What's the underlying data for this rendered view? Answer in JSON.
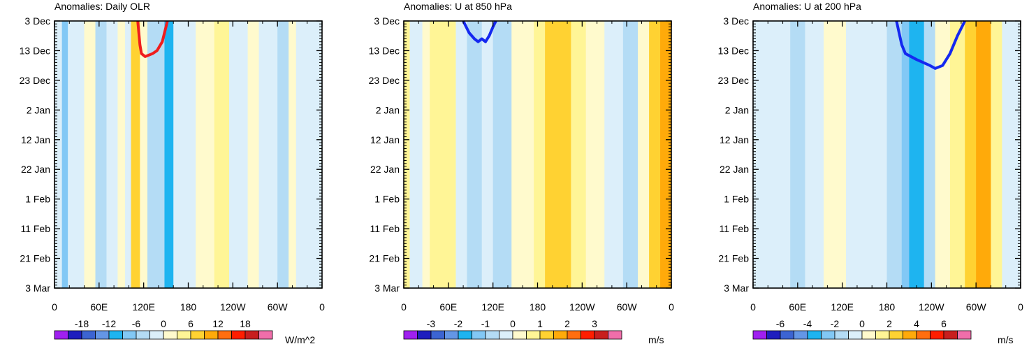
{
  "chart_data": [
    {
      "type": "heatmap",
      "title": "Anomalies: Daily OLR",
      "xlabel": "",
      "ylabel": "",
      "x_ticks": [
        "0",
        "60E",
        "120E",
        "180",
        "120W",
        "60W",
        "0"
      ],
      "y_ticks": [
        "3 Dec",
        "13 Dec",
        "23 Dec",
        "2 Jan",
        "12 Jan",
        "22 Jan",
        "1 Feb",
        "11 Feb",
        "21 Feb",
        "3 Mar"
      ],
      "xlim": [
        0,
        360
      ],
      "ylim": [
        0,
        90
      ],
      "colorbar": {
        "unit": "W/m^2",
        "tick_labels": [
          "-18",
          "-12",
          "-6",
          "0",
          "6",
          "12",
          "18"
        ],
        "levels": [
          -21,
          -18,
          -15,
          -12,
          -9,
          -6,
          -3,
          0,
          3,
          6,
          9,
          12,
          15,
          18,
          21
        ]
      },
      "bands": [
        {
          "x0": 0,
          "x1": 10,
          "level": -1
        },
        {
          "x0": 10,
          "x1": 18,
          "level": -3
        },
        {
          "x0": 18,
          "x1": 40,
          "level": -1
        },
        {
          "x0": 40,
          "x1": 55,
          "level": 1
        },
        {
          "x0": 55,
          "x1": 70,
          "level": -2
        },
        {
          "x0": 70,
          "x1": 85,
          "level": -1
        },
        {
          "x0": 85,
          "x1": 95,
          "level": 1
        },
        {
          "x0": 95,
          "x1": 103,
          "level": -1
        },
        {
          "x0": 103,
          "x1": 115,
          "level": 3
        },
        {
          "x0": 115,
          "x1": 125,
          "level": 1
        },
        {
          "x0": 125,
          "x1": 148,
          "level": -2
        },
        {
          "x0": 148,
          "x1": 160,
          "level": -4
        },
        {
          "x0": 160,
          "x1": 190,
          "level": -1
        },
        {
          "x0": 190,
          "x1": 215,
          "level": 1
        },
        {
          "x0": 215,
          "x1": 235,
          "level": 2
        },
        {
          "x0": 235,
          "x1": 260,
          "level": -1
        },
        {
          "x0": 260,
          "x1": 275,
          "level": 1
        },
        {
          "x0": 275,
          "x1": 300,
          "level": -1
        },
        {
          "x0": 300,
          "x1": 315,
          "level": -2
        },
        {
          "x0": 315,
          "x1": 325,
          "level": 1
        },
        {
          "x0": 325,
          "x1": 360,
          "level": -1
        }
      ],
      "contour_color": "#ef1d1d",
      "contour": [
        [
          112,
          0
        ],
        [
          115,
          8
        ],
        [
          117,
          11
        ],
        [
          122,
          12
        ],
        [
          132,
          11
        ],
        [
          138,
          10
        ],
        [
          145,
          7
        ],
        [
          152,
          0
        ]
      ]
    },
    {
      "type": "heatmap",
      "title": "Anomalies: U at 850 hPa",
      "xlabel": "",
      "ylabel": "",
      "x_ticks": [
        "0",
        "60E",
        "120E",
        "180",
        "120W",
        "60W",
        "0"
      ],
      "y_ticks": [
        "3 Dec",
        "13 Dec",
        "23 Dec",
        "2 Jan",
        "12 Jan",
        "22 Jan",
        "1 Feb",
        "11 Feb",
        "21 Feb",
        "3 Mar"
      ],
      "xlim": [
        0,
        360
      ],
      "ylim": [
        0,
        90
      ],
      "colorbar": {
        "unit": "m/s",
        "tick_labels": [
          "-3",
          "-2",
          "-1",
          "0",
          "1",
          "2",
          "3"
        ],
        "levels": [
          -3.5,
          -3,
          -2.5,
          -2,
          -1.5,
          -1,
          -0.5,
          0,
          0.5,
          1,
          1.5,
          2,
          2.5,
          3,
          3.5
        ]
      },
      "bands": [
        {
          "x0": 0,
          "x1": 8,
          "level": 2
        },
        {
          "x0": 8,
          "x1": 25,
          "level": -1
        },
        {
          "x0": 25,
          "x1": 35,
          "level": 1
        },
        {
          "x0": 35,
          "x1": 70,
          "level": 2
        },
        {
          "x0": 70,
          "x1": 85,
          "level": -1
        },
        {
          "x0": 85,
          "x1": 105,
          "level": -2
        },
        {
          "x0": 105,
          "x1": 120,
          "level": -1
        },
        {
          "x0": 120,
          "x1": 145,
          "level": -2
        },
        {
          "x0": 145,
          "x1": 175,
          "level": 1
        },
        {
          "x0": 175,
          "x1": 190,
          "level": 2
        },
        {
          "x0": 190,
          "x1": 225,
          "level": 3
        },
        {
          "x0": 225,
          "x1": 245,
          "level": 2
        },
        {
          "x0": 245,
          "x1": 270,
          "level": 1
        },
        {
          "x0": 270,
          "x1": 295,
          "level": -1
        },
        {
          "x0": 295,
          "x1": 315,
          "level": -2
        },
        {
          "x0": 315,
          "x1": 330,
          "level": 1
        },
        {
          "x0": 330,
          "x1": 345,
          "level": 3
        },
        {
          "x0": 345,
          "x1": 360,
          "level": 4
        }
      ],
      "contour_color": "#1428f0",
      "contour": [
        [
          80,
          0
        ],
        [
          88,
          4
        ],
        [
          95,
          6
        ],
        [
          100,
          7
        ],
        [
          105,
          6
        ],
        [
          110,
          7
        ],
        [
          115,
          5
        ],
        [
          120,
          2
        ],
        [
          124,
          0
        ]
      ]
    },
    {
      "type": "heatmap",
      "title": "Anomalies: U at 200 hPa",
      "xlabel": "",
      "ylabel": "",
      "x_ticks": [
        "0",
        "60E",
        "120E",
        "180",
        "120W",
        "60W",
        "0"
      ],
      "y_ticks": [
        "3 Dec",
        "13 Dec",
        "23 Dec",
        "2 Jan",
        "12 Jan",
        "22 Jan",
        "1 Feb",
        "11 Feb",
        "21 Feb",
        "3 Mar"
      ],
      "xlim": [
        0,
        360
      ],
      "ylim": [
        0,
        90
      ],
      "colorbar": {
        "unit": "m/s",
        "tick_labels": [
          "-6",
          "-4",
          "-2",
          "0",
          "2",
          "4",
          "6"
        ],
        "levels": [
          -7,
          -6,
          -5,
          -4,
          -3,
          -2,
          -1,
          0,
          1,
          2,
          3,
          4,
          5,
          6,
          7
        ]
      },
      "bands": [
        {
          "x0": 0,
          "x1": 15,
          "level": -1
        },
        {
          "x0": 15,
          "x1": 50,
          "level": -1
        },
        {
          "x0": 50,
          "x1": 70,
          "level": -2
        },
        {
          "x0": 70,
          "x1": 95,
          "level": -1
        },
        {
          "x0": 95,
          "x1": 125,
          "level": 1
        },
        {
          "x0": 125,
          "x1": 145,
          "level": -1
        },
        {
          "x0": 145,
          "x1": 180,
          "level": -1
        },
        {
          "x0": 180,
          "x1": 200,
          "level": -2
        },
        {
          "x0": 200,
          "x1": 210,
          "level": -3
        },
        {
          "x0": 210,
          "x1": 230,
          "level": -4
        },
        {
          "x0": 230,
          "x1": 245,
          "level": -2
        },
        {
          "x0": 245,
          "x1": 265,
          "level": 1
        },
        {
          "x0": 265,
          "x1": 285,
          "level": 2
        },
        {
          "x0": 285,
          "x1": 300,
          "level": 3
        },
        {
          "x0": 300,
          "x1": 320,
          "level": 4
        },
        {
          "x0": 320,
          "x1": 335,
          "level": 2
        },
        {
          "x0": 335,
          "x1": 360,
          "level": -1
        }
      ],
      "contour_color": "#1428f0",
      "contour": [
        [
          193,
          0
        ],
        [
          200,
          8
        ],
        [
          205,
          11
        ],
        [
          220,
          13
        ],
        [
          238,
          15
        ],
        [
          245,
          16
        ],
        [
          255,
          15
        ],
        [
          265,
          11
        ],
        [
          275,
          5
        ],
        [
          285,
          0
        ]
      ]
    }
  ],
  "palette": {
    "level_colors": [
      "#a020f0",
      "#1e1ebe",
      "#3c64d2",
      "#6496e6",
      "#1eb4f0",
      "#82c8f5",
      "#b4dcf5",
      "#dceffa",
      "#fffacd",
      "#fff596",
      "#ffd232",
      "#ffaa0a",
      "#ff6e0f",
      "#ff1e00",
      "#c81e1e",
      "#f06eaa"
    ],
    "neg": [
      "#dceffa",
      "#b4dcf5",
      "#82c8f5",
      "#1eb4f0"
    ],
    "pos": [
      "#fffacd",
      "#fff596",
      "#ffd232",
      "#ffaa0a",
      "#ff6e0f"
    ]
  }
}
